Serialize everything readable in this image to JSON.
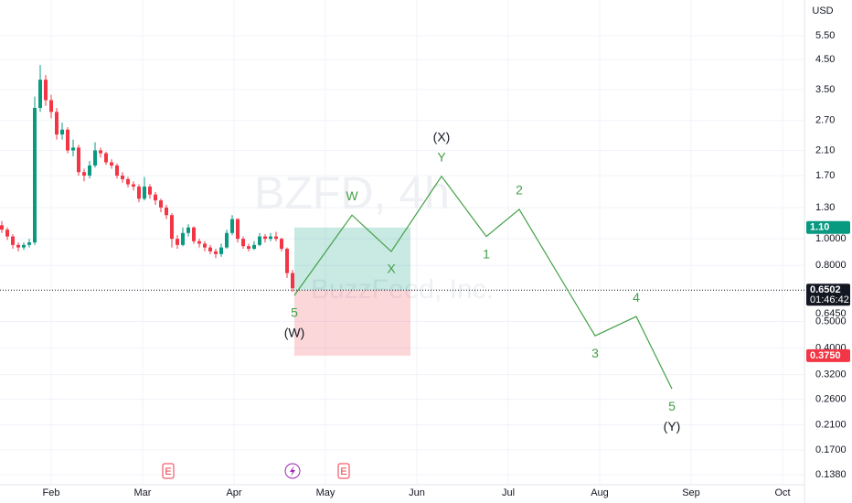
{
  "chart_data": {
    "type": "candlestick",
    "currency": "USD",
    "log_scale": true,
    "grid": true,
    "up_color": "#089981",
    "down_color": "#f23645",
    "watermark": {
      "symbol": "BZFD, 4h",
      "name": "BuzzFeed, Inc."
    },
    "xlim": [
      -0.56,
      8.24
    ],
    "xticks": [
      {
        "value": 0,
        "label": "Feb"
      },
      {
        "value": 1,
        "label": "Mar"
      },
      {
        "value": 2,
        "label": "Apr"
      },
      {
        "value": 3,
        "label": "May"
      },
      {
        "value": 4,
        "label": "Jun"
      },
      {
        "value": 5,
        "label": "Jul"
      },
      {
        "value": 6,
        "label": "Aug"
      },
      {
        "value": 7,
        "label": "Sep"
      },
      {
        "value": 8,
        "label": "Oct"
      }
    ],
    "ylim": [
      0.127,
      7.42
    ],
    "yticks": [
      {
        "value": 5.5,
        "label": "5.50"
      },
      {
        "value": 4.5,
        "label": "4.50"
      },
      {
        "value": 3.5,
        "label": "3.50"
      },
      {
        "value": 2.7,
        "label": "2.70"
      },
      {
        "value": 2.1,
        "label": "2.10"
      },
      {
        "value": 1.7,
        "label": "1.70"
      },
      {
        "value": 1.3,
        "label": "1.30"
      },
      {
        "value": 1,
        "label": "1.0000"
      },
      {
        "value": 0.8,
        "label": "0.8000"
      },
      {
        "value": 0.5,
        "label": "0.5000"
      },
      {
        "value": 0.4,
        "label": "0.4000"
      },
      {
        "value": 0.32,
        "label": "0.3200"
      },
      {
        "value": 0.26,
        "label": "0.2600"
      },
      {
        "value": 0.21,
        "label": "0.2100"
      },
      {
        "value": 0.17,
        "label": "0.1700"
      },
      {
        "value": 0.138,
        "label": "0.1380"
      }
    ],
    "candles": {
      "x": [
        -0.54,
        -0.48,
        -0.42,
        -0.36,
        -0.3,
        -0.24,
        -0.18,
        -0.12,
        -0.06,
        0,
        0.06,
        0.12,
        0.18,
        0.24,
        0.3,
        0.36,
        0.42,
        0.48,
        0.54,
        0.6,
        0.66,
        0.72,
        0.78,
        0.84,
        0.9,
        0.96,
        1.02,
        1.08,
        1.14,
        1.2,
        1.26,
        1.32,
        1.38,
        1.44,
        1.5,
        1.56,
        1.62,
        1.68,
        1.74,
        1.8,
        1.86,
        1.92,
        1.98,
        2.04,
        2.1,
        2.16,
        2.22,
        2.28,
        2.34,
        2.4,
        2.46,
        2.52,
        2.58,
        2.64
      ],
      "open": [
        1.12,
        1.08,
        1.02,
        0.95,
        0.93,
        0.95,
        0.97,
        3.0,
        3.8,
        3.2,
        2.9,
        2.4,
        2.5,
        2.1,
        2.15,
        1.75,
        1.7,
        1.85,
        2.1,
        2.05,
        1.9,
        1.85,
        1.7,
        1.65,
        1.58,
        1.55,
        1.4,
        1.55,
        1.45,
        1.38,
        1.3,
        1.22,
        1.0,
        0.95,
        1.05,
        1.1,
        0.98,
        0.96,
        0.93,
        0.9,
        0.88,
        0.93,
        1.05,
        1.18,
        1.0,
        0.94,
        0.92,
        0.95,
        1.02,
        1.0,
        1.02,
        1.0,
        0.92,
        0.75
      ],
      "high": [
        1.16,
        1.1,
        1.04,
        0.97,
        0.97,
        1.0,
        3.3,
        4.3,
        3.95,
        3.35,
        3.0,
        2.65,
        2.55,
        2.3,
        2.2,
        1.8,
        1.92,
        2.25,
        2.15,
        2.08,
        1.95,
        1.88,
        1.75,
        1.68,
        1.62,
        1.58,
        1.68,
        1.58,
        1.48,
        1.4,
        1.33,
        1.24,
        1.03,
        1.1,
        1.13,
        1.11,
        1.0,
        0.98,
        0.95,
        0.92,
        0.96,
        1.08,
        1.22,
        1.19,
        1.02,
        0.96,
        0.98,
        1.05,
        1.04,
        1.05,
        1.06,
        1.01,
        0.93,
        0.77
      ],
      "low": [
        1.05,
        0.99,
        0.92,
        0.9,
        0.91,
        0.93,
        0.95,
        2.9,
        3.05,
        2.75,
        2.3,
        2.3,
        2.05,
        2.0,
        1.7,
        1.62,
        1.66,
        1.82,
        1.98,
        1.86,
        1.8,
        1.66,
        1.6,
        1.54,
        1.5,
        1.36,
        1.38,
        1.4,
        1.33,
        1.25,
        1.18,
        0.93,
        0.92,
        0.94,
        1.02,
        0.96,
        0.93,
        0.9,
        0.88,
        0.85,
        0.86,
        0.92,
        1.03,
        0.97,
        0.92,
        0.9,
        0.91,
        0.94,
        0.97,
        0.98,
        0.98,
        0.9,
        0.72,
        0.64
      ],
      "close": [
        1.08,
        1.02,
        0.95,
        0.93,
        0.95,
        0.97,
        3.0,
        3.8,
        3.2,
        2.9,
        2.4,
        2.5,
        2.1,
        2.15,
        1.75,
        1.7,
        1.85,
        2.1,
        2.05,
        1.9,
        1.85,
        1.7,
        1.65,
        1.58,
        1.55,
        1.4,
        1.55,
        1.45,
        1.38,
        1.3,
        1.22,
        1.0,
        0.95,
        1.05,
        1.1,
        0.98,
        0.96,
        0.93,
        0.9,
        0.88,
        0.93,
        1.05,
        1.18,
        1.0,
        0.94,
        0.92,
        0.95,
        1.02,
        1.0,
        1.02,
        1.0,
        0.92,
        0.75,
        0.66
      ]
    },
    "wave": {
      "color": "#43a047",
      "x": [
        2.66,
        3.29,
        3.72,
        4.27,
        4.76,
        5.12,
        5.95,
        6.4,
        6.79
      ],
      "values": [
        0.622,
        1.22,
        0.899,
        1.69,
        1.02,
        1.28,
        0.443,
        0.521,
        0.284
      ],
      "labels": [
        "5",
        "W",
        "X",
        "Y",
        "1",
        "2",
        "3",
        "4",
        "5"
      ],
      "degrees": [
        "(W)",
        null,
        null,
        "(X)",
        null,
        null,
        null,
        null,
        "(Y)"
      ]
    },
    "position": {
      "x": [
        2.66,
        3.93
      ],
      "target": 1.1,
      "entry": 0.6502,
      "stop": 0.375
    },
    "price_tags": [
      {
        "value": 1.1,
        "label": "1.10",
        "color": "#089981"
      },
      {
        "value": 0.6502,
        "label": "0.6502",
        "sub": "01:46:42",
        "note": "0.6450",
        "color": "#131722"
      },
      {
        "value": 0.375,
        "label": "0.3750",
        "color": "#f23645"
      }
    ],
    "events": [
      {
        "x": 1.28,
        "label": "E"
      },
      {
        "x": 3.2,
        "label": "E"
      }
    ],
    "lightning_x": 2.64
  }
}
